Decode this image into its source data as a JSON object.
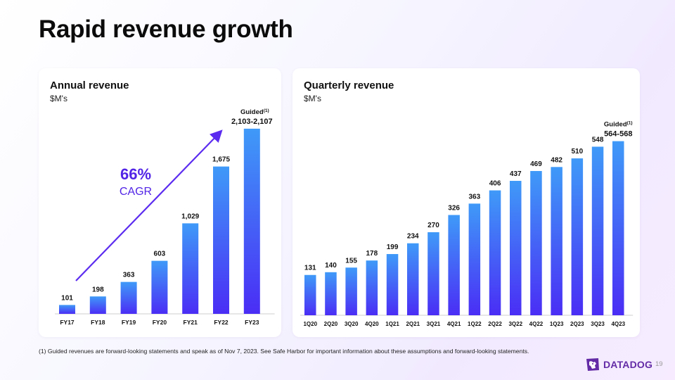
{
  "slide": {
    "title": "Rapid revenue growth",
    "footnote": "(1) Guided revenues are forward-looking statements and speak as of Nov 7, 2023.  See Safe Harbor for important information about these assumptions and forward-looking statements.",
    "page_number": "19",
    "logo_text": "DATADOG"
  },
  "colors": {
    "bar_top": "#3f9af8",
    "bar_bottom": "#4a2df5",
    "arrow": "#5b2cf0",
    "cagr": "#5124e6",
    "brand": "#632ca6"
  },
  "chart_data": [
    {
      "type": "bar",
      "title": "Annual revenue",
      "subtitle": "$M's",
      "categories": [
        "FY17",
        "FY18",
        "FY19",
        "FY20",
        "FY21",
        "FY22",
        "FY23"
      ],
      "values": [
        101,
        198,
        363,
        603,
        1029,
        1675,
        2105
      ],
      "value_labels": [
        "101",
        "198",
        "363",
        "603",
        "1,029",
        "1,675",
        "2,103-2,107"
      ],
      "guided_label": "Guided",
      "guided_sup": "(1)",
      "annotation": {
        "value": "66%",
        "label": "CAGR"
      },
      "ylim": [
        0,
        2200
      ],
      "grid": false
    },
    {
      "type": "bar",
      "title": "Quarterly revenue",
      "subtitle": "$M's",
      "categories": [
        "1Q20",
        "2Q20",
        "3Q20",
        "4Q20",
        "1Q21",
        "2Q21",
        "3Q21",
        "4Q21",
        "1Q22",
        "2Q22",
        "3Q22",
        "4Q22",
        "1Q23",
        "2Q23",
        "3Q23",
        "4Q23"
      ],
      "values": [
        131,
        140,
        155,
        178,
        199,
        234,
        270,
        326,
        363,
        406,
        437,
        469,
        482,
        510,
        548,
        566
      ],
      "value_labels": [
        "131",
        "140",
        "155",
        "178",
        "199",
        "234",
        "270",
        "326",
        "363",
        "406",
        "437",
        "469",
        "482",
        "510",
        "548",
        "564-568"
      ],
      "guided_label": "Guided",
      "guided_sup": "(1)",
      "ylim": [
        0,
        620
      ],
      "grid": false
    }
  ]
}
